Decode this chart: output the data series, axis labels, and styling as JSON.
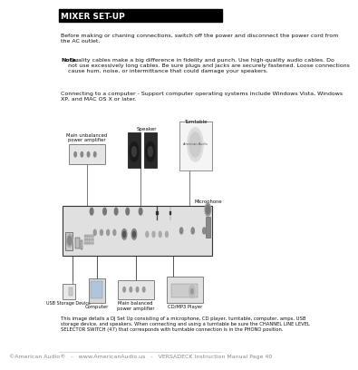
{
  "title": "MIXER SET-UP",
  "title_bg": "#000000",
  "title_color": "#ffffff",
  "title_fontsize": 6.5,
  "bg_color": "#ffffff",
  "body_text": [
    "Before making or chaning connections, switch off the power and disconnect the power cord from\nthe AC outlet.",
    "Note: Quality cables make a big difference in fidelity and punch. Use high-quality audio cables. Do\nnot use excessively long cables. Be sure plugs and jacks are securely fastened. Loose connections\ncause hum, noise, or intermittance that could damage your speakers.",
    "Connecting to a computer - Support computer operating systems include Windows Vista, Windows\nXP, and MAC OS X or later."
  ],
  "footer_text": "©American Audio®   -   www.AmericanAudio.us   -   VERSADECK Instruction Manual Page 40",
  "footer_fontsize": 4.5,
  "caption_text": "This image details a DJ Set Up consisting of a microphone, CD player, turntable, computer, amps, USB\nstorage device, and speakers. When connecting and using a turntable be sure the CHANNEL LINE LEVEL\nSELECTOR SWITCH (47) that corresponds with turntable connection is in the PHONO position.",
  "labels": {
    "speaker": "Speaker",
    "turntable": "Turntable",
    "main_unbalanced": "Main unbalanced\npower amplifier",
    "microphone": "Microphone",
    "computer": "Computer",
    "usb": "USB Storage Device",
    "cd_player": "CD/MP3 Player",
    "main_balanced": "Main balanced\npower amplifier"
  }
}
